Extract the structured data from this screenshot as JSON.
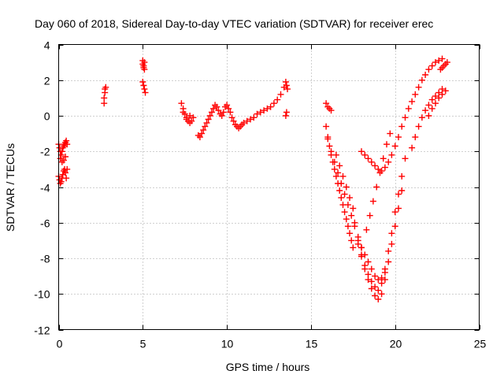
{
  "chart_data": {
    "type": "scatter",
    "title": "Day 060 of 2018, Sidereal Day-to-day VTEC variation (SDTVAR) for receiver erec",
    "xlabel": "GPS time / hours",
    "ylabel": "SDTVAR / TECUs",
    "xlim": [
      0,
      25
    ],
    "ylim": [
      -12,
      4
    ],
    "xticks": [
      0,
      5,
      10,
      15,
      20,
      25
    ],
    "yticks": [
      -12,
      -10,
      -8,
      -6,
      -4,
      -2,
      0,
      2,
      4
    ],
    "grid": true,
    "marker": "plus",
    "color": "#ff0000",
    "series": [
      {
        "x": [
          0.0,
          0.05,
          0.1,
          0.15,
          0.2,
          0.25,
          0.3,
          0.35,
          0.4,
          0.45,
          0.5,
          0.0,
          0.05,
          0.1,
          0.15,
          0.2,
          0.25,
          0.3,
          0.35,
          0.4,
          0.45,
          0.5,
          0.1,
          0.2,
          0.3,
          0.4,
          2.7,
          2.7,
          2.75,
          2.75,
          2.8,
          5.0,
          5.0,
          5.05,
          5.05,
          5.1,
          5.1,
          5.0,
          5.05,
          5.1,
          5.15,
          7.3,
          7.4,
          7.5,
          7.6,
          7.7,
          7.8,
          7.9,
          8.0,
          7.4,
          7.6,
          7.8,
          8.3,
          8.4,
          8.5,
          8.6,
          8.7,
          8.8,
          8.9,
          9.0,
          9.1,
          9.2,
          9.3,
          9.4,
          9.5,
          9.6,
          9.7,
          9.8,
          9.9,
          10.0,
          10.1,
          10.2,
          10.3,
          10.4,
          10.5,
          10.6,
          10.7,
          10.8,
          10.9,
          11.0,
          11.2,
          11.4,
          11.6,
          11.8,
          12.0,
          12.2,
          12.4,
          12.6,
          12.8,
          13.0,
          13.2,
          13.4,
          13.5,
          13.55,
          13.6,
          13.5,
          13.55,
          15.9,
          16.0,
          16.1,
          16.2,
          15.9,
          16.0,
          16.1,
          16.2,
          16.3,
          16.4,
          16.5,
          16.6,
          16.7,
          16.8,
          16.9,
          17.0,
          17.1,
          17.2,
          17.3,
          17.4,
          17.5,
          16.0,
          16.2,
          16.4,
          16.6,
          16.8,
          17.0,
          17.2,
          17.4,
          17.6,
          17.8,
          18.0,
          16.5,
          16.7,
          16.9,
          17.1,
          17.3,
          17.5,
          17.6,
          17.8,
          18.0,
          18.2,
          18.4,
          18.6,
          18.8,
          19.0,
          19.2,
          19.4,
          19.6,
          19.8,
          20.0,
          20.2,
          20.4,
          17.8,
          18.0,
          18.2,
          18.4,
          18.6,
          18.8,
          19.0,
          19.2,
          19.4,
          19.6,
          19.8,
          20.0,
          20.2,
          20.4,
          20.6,
          18.0,
          18.2,
          18.4,
          18.6,
          18.8,
          19.0,
          19.2,
          19.4,
          18.3,
          18.5,
          18.7,
          18.9,
          19.1,
          19.3,
          19.5,
          19.7,
          18.0,
          18.2,
          18.4,
          18.6,
          18.8,
          19.0,
          19.2,
          19.4,
          19.6,
          19.8,
          20.0,
          20.2,
          20.4,
          20.6,
          20.8,
          21.0,
          21.2,
          21.4,
          21.6,
          21.8,
          22.0,
          22.2,
          22.4,
          22.6,
          22.8,
          21.0,
          21.2,
          21.4,
          21.6,
          21.8,
          22.0,
          22.2,
          22.4,
          22.6,
          22.8,
          22.0,
          22.2,
          22.4,
          22.6,
          22.8,
          23.0,
          22.7,
          22.8,
          22.9,
          23.0,
          23.1
        ],
        "y": [
          -3.4,
          -3.6,
          -3.8,
          -3.7,
          -3.5,
          -3.3,
          -3.1,
          -3.0,
          -3.2,
          -3.5,
          -3.0,
          -1.6,
          -1.8,
          -2.0,
          -2.2,
          -2.0,
          -1.8,
          -1.7,
          -1.6,
          -1.5,
          -1.4,
          -1.6,
          -2.4,
          -2.6,
          -2.5,
          -2.3,
          0.7,
          1.0,
          1.3,
          1.5,
          1.6,
          3.1,
          2.9,
          2.7,
          2.8,
          3.0,
          2.6,
          1.9,
          1.7,
          1.5,
          1.3,
          0.7,
          0.4,
          0.1,
          -0.1,
          -0.3,
          -0.4,
          -0.3,
          -0.1,
          0.2,
          -0.2,
          0.0,
          -1.1,
          -1.2,
          -1.0,
          -0.8,
          -0.6,
          -0.4,
          -0.2,
          0.0,
          0.2,
          0.4,
          0.6,
          0.5,
          0.3,
          0.1,
          0.0,
          0.2,
          0.5,
          0.6,
          0.4,
          0.2,
          -0.1,
          -0.3,
          -0.5,
          -0.6,
          -0.7,
          -0.6,
          -0.5,
          -0.4,
          -0.3,
          -0.2,
          -0.1,
          0.1,
          0.2,
          0.3,
          0.4,
          0.5,
          0.7,
          0.9,
          1.2,
          1.6,
          1.9,
          1.7,
          1.5,
          0.0,
          0.2,
          0.7,
          0.5,
          0.4,
          0.3,
          -0.6,
          -1.2,
          -1.7,
          -2.2,
          -2.6,
          -3.0,
          -3.4,
          -3.8,
          -4.2,
          -4.6,
          -5.0,
          -5.4,
          -5.8,
          -6.2,
          -6.6,
          -7.0,
          -7.4,
          -1.3,
          -2.0,
          -2.6,
          -3.2,
          -3.8,
          -4.4,
          -5.0,
          -5.6,
          -6.2,
          -6.8,
          -7.4,
          -2.2,
          -2.8,
          -3.4,
          -4.0,
          -4.6,
          -5.2,
          -6.0,
          -7.0,
          -7.9,
          -8.6,
          -9.2,
          -9.7,
          -10.1,
          -10.3,
          -10.0,
          -9.2,
          -8.2,
          -7.2,
          -6.2,
          -5.2,
          -4.2,
          -7.2,
          -7.8,
          -8.4,
          -8.9,
          -9.3,
          -9.6,
          -9.8,
          -9.4,
          -8.6,
          -7.6,
          -6.6,
          -5.4,
          -4.4,
          -3.4,
          -2.4,
          -7.4,
          -7.8,
          -8.2,
          -8.6,
          -9.0,
          -9.2,
          -9.1,
          -8.8,
          -6.4,
          -5.6,
          -4.8,
          -4.0,
          -3.2,
          -2.4,
          -1.6,
          -1.0,
          -2.0,
          -2.2,
          -2.4,
          -2.6,
          -2.8,
          -3.0,
          -3.1,
          -2.9,
          -2.6,
          -2.2,
          -1.7,
          -1.2,
          -0.6,
          -0.1,
          0.4,
          0.8,
          1.2,
          1.6,
          2.0,
          2.3,
          2.6,
          2.8,
          3.0,
          3.1,
          3.2,
          -1.8,
          -1.2,
          -0.6,
          -0.1,
          0.3,
          0.6,
          0.9,
          1.1,
          1.3,
          1.5,
          0.0,
          0.4,
          0.7,
          1.0,
          1.2,
          1.4,
          2.6,
          2.7,
          2.8,
          2.9,
          3.0
        ]
      }
    ]
  }
}
